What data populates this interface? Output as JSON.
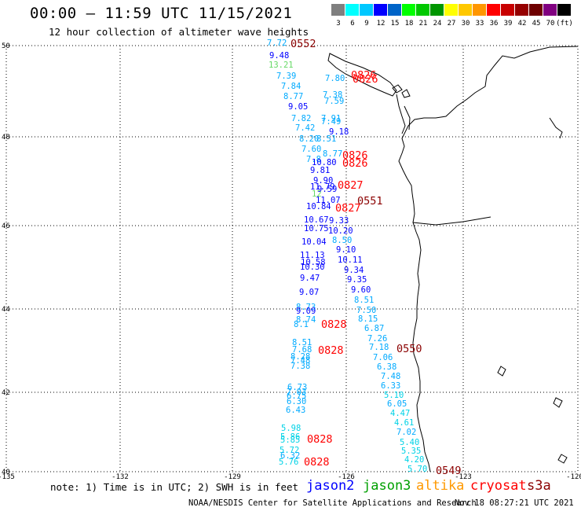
{
  "header": {
    "title": "00:00 – 11:59 UTC 11/15/2021",
    "subtitle": "12 hour collection of altimeter wave heights"
  },
  "color_scale": {
    "colors": [
      "#7f7f7f",
      "#00ffff",
      "#00c8ff",
      "#0000ff",
      "#0064c8",
      "#00ff00",
      "#00c800",
      "#009600",
      "#ffff00",
      "#ffc800",
      "#ff9600",
      "#ff0000",
      "#c80000",
      "#960000",
      "#6e0000",
      "#800080",
      "#000000"
    ],
    "labels": [
      "3",
      "6",
      "9",
      "12",
      "15",
      "18",
      "21",
      "24",
      "27",
      "30",
      "33",
      "36",
      "39",
      "42",
      "45",
      "70",
      "(ft)"
    ],
    "label_colors": {
      "lt6": "#00d2e6",
      "6to12": "#0000ff",
      "12to15": "#00aaff",
      "15to18": "#66d966"
    }
  },
  "map": {
    "lat_ticks": [
      "50",
      "48",
      "46",
      "44",
      "42",
      "40"
    ],
    "lon_ticks": [
      "-135",
      "-132",
      "-129",
      "-126",
      "-123",
      "-120"
    ],
    "coastline_color": "#000000",
    "grid_style": "dotted"
  },
  "readings": [
    {
      "t": "7.72",
      "c": "#00aaff"
    },
    {
      "t": "9.48",
      "c": "#0000ff"
    },
    {
      "t": "13.21",
      "c": "#66d966"
    },
    {
      "t": "7.39",
      "c": "#00aaff"
    },
    {
      "t": "7.84",
      "c": "#00aaff"
    },
    {
      "t": "8.77",
      "c": "#00aaff"
    },
    {
      "t": "9.05",
      "c": "#0000ff"
    },
    {
      "t": "7.82",
      "c": "#00aaff"
    },
    {
      "t": "7.42",
      "c": "#00aaff"
    },
    {
      "t": "8.20",
      "c": "#00aaff"
    },
    {
      "t": "7.60",
      "c": "#00aaff"
    },
    {
      "t": "7.8",
      "c": "#00aaff"
    },
    {
      "t": "9.81",
      "c": "#0000ff"
    },
    {
      "t": "9.90",
      "c": "#0000ff"
    },
    {
      "t": "11.79",
      "c": "#0000ff"
    },
    {
      "t": "12",
      "c": "#66d966"
    },
    {
      "t": "10.84",
      "c": "#0000ff"
    },
    {
      "t": "10.67",
      "c": "#0000ff"
    },
    {
      "t": "10.75",
      "c": "#0000ff"
    },
    {
      "t": "10.04",
      "c": "#0000ff"
    },
    {
      "t": "11.13",
      "c": "#0000ff"
    },
    {
      "t": "10.58",
      "c": "#0000ff"
    },
    {
      "t": "10.30",
      "c": "#0000ff"
    },
    {
      "t": "9.47",
      "c": "#0000ff"
    },
    {
      "t": "9.07",
      "c": "#0000ff"
    },
    {
      "t": "8.73",
      "c": "#00aaff"
    },
    {
      "t": "9.09",
      "c": "#0000ff"
    },
    {
      "t": "8.74",
      "c": "#00aaff"
    },
    {
      "t": "8.1",
      "c": "#00aaff"
    },
    {
      "t": "8.51",
      "c": "#00aaff"
    },
    {
      "t": "7.68",
      "c": "#00aaff"
    },
    {
      "t": "8.28",
      "c": "#00aaff"
    },
    {
      "t": "7.48",
      "c": "#00aaff"
    },
    {
      "t": "7.38",
      "c": "#00aaff"
    },
    {
      "t": "6.73",
      "c": "#00aaff"
    },
    {
      "t": "7.03",
      "c": "#00aaff"
    },
    {
      "t": "6.75",
      "c": "#00aaff"
    },
    {
      "t": "6.30",
      "c": "#00aaff"
    },
    {
      "t": "6.43",
      "c": "#00aaff"
    },
    {
      "t": "5.98",
      "c": "#00d2e6"
    },
    {
      "t": "5.86",
      "c": "#00d2e6"
    },
    {
      "t": "5.85",
      "c": "#00d2e6"
    },
    {
      "t": "5.72",
      "c": "#00d2e6"
    },
    {
      "t": "6.32",
      "c": "#00aaff"
    },
    {
      "t": "5.76",
      "c": "#00d2e6"
    },
    {
      "t": "7.80",
      "c": "#00aaff"
    },
    {
      "t": "7.38",
      "c": "#00aaff"
    },
    {
      "t": "7.59",
      "c": "#00aaff"
    },
    {
      "t": "7.91",
      "c": "#00aaff"
    },
    {
      "t": "7.49",
      "c": "#00aaff"
    },
    {
      "t": "9.18",
      "c": "#0000ff"
    },
    {
      "t": "8.51",
      "c": "#00aaff"
    },
    {
      "t": "8.77",
      "c": "#00aaff"
    },
    {
      "t": "10.80",
      "c": "#0000ff"
    },
    {
      "t": "9.59",
      "c": "#0000ff"
    },
    {
      "t": "11.07",
      "c": "#0000ff"
    },
    {
      "t": "9.33",
      "c": "#0000ff"
    },
    {
      "t": "10.20",
      "c": "#0000ff"
    },
    {
      "t": "8.50",
      "c": "#00aaff"
    },
    {
      "t": "9.10",
      "c": "#0000ff"
    },
    {
      "t": "10.11",
      "c": "#0000ff"
    },
    {
      "t": "9.34",
      "c": "#0000ff"
    },
    {
      "t": "9.35",
      "c": "#0000ff"
    },
    {
      "t": "9.60",
      "c": "#0000ff"
    },
    {
      "t": "8.51",
      "c": "#00aaff"
    },
    {
      "t": "7.50",
      "c": "#00aaff"
    },
    {
      "t": "8.15",
      "c": "#00aaff"
    },
    {
      "t": "6.87",
      "c": "#00aaff"
    },
    {
      "t": "7.26",
      "c": "#00aaff"
    },
    {
      "t": "7.18",
      "c": "#00aaff"
    },
    {
      "t": "7.06",
      "c": "#00aaff"
    },
    {
      "t": "6.38",
      "c": "#00aaff"
    },
    {
      "t": "7.48",
      "c": "#00aaff"
    },
    {
      "t": "6.33",
      "c": "#00aaff"
    },
    {
      "t": "5.10",
      "c": "#00d2e6"
    },
    {
      "t": "6.05",
      "c": "#00aaff"
    },
    {
      "t": "4.47",
      "c": "#00d2e6"
    },
    {
      "t": "4.61",
      "c": "#00d2e6"
    },
    {
      "t": "7.02",
      "c": "#00aaff"
    },
    {
      "t": "5.40",
      "c": "#00d2e6"
    },
    {
      "t": "5.35",
      "c": "#00d2e6"
    },
    {
      "t": "4.20",
      "c": "#00d2e6"
    },
    {
      "t": "5.70",
      "c": "#00d2e6"
    }
  ],
  "pass_times": [
    {
      "t": "0552",
      "c": "#8b0000"
    },
    {
      "t": "0826",
      "c": "#ff0000"
    },
    {
      "t": "0826",
      "c": "#ff0000"
    },
    {
      "t": "0826",
      "c": "#ff0000"
    },
    {
      "t": "0826",
      "c": "#ff0000"
    },
    {
      "t": "0827",
      "c": "#ff0000"
    },
    {
      "t": "0551",
      "c": "#8b0000"
    },
    {
      "t": "0827",
      "c": "#ff0000"
    },
    {
      "t": "0828",
      "c": "#ff0000"
    },
    {
      "t": "0550",
      "c": "#8b0000"
    },
    {
      "t": "0828",
      "c": "#ff0000"
    },
    {
      "t": "0828",
      "c": "#ff0000"
    },
    {
      "t": "0828",
      "c": "#ff0000"
    },
    {
      "t": "0549",
      "c": "#8b0000"
    }
  ],
  "footer": {
    "note": "note: 1) Time is in UTC; 2) SWH is in feet",
    "satellites": [
      {
        "name": "jason2",
        "color": "#0000ff"
      },
      {
        "name": "jason3",
        "color": "#00a000"
      },
      {
        "name": "altika",
        "color": "#ff9900"
      },
      {
        "name": "cryosat",
        "color": "#ff0000"
      },
      {
        "name": "s3a",
        "color": "#8b0000"
      }
    ],
    "credit": "NOAA/NESDIS Center for Satellite Applications and Research",
    "timestamp": "Nov 18 08:27:21 UTC 2021"
  }
}
